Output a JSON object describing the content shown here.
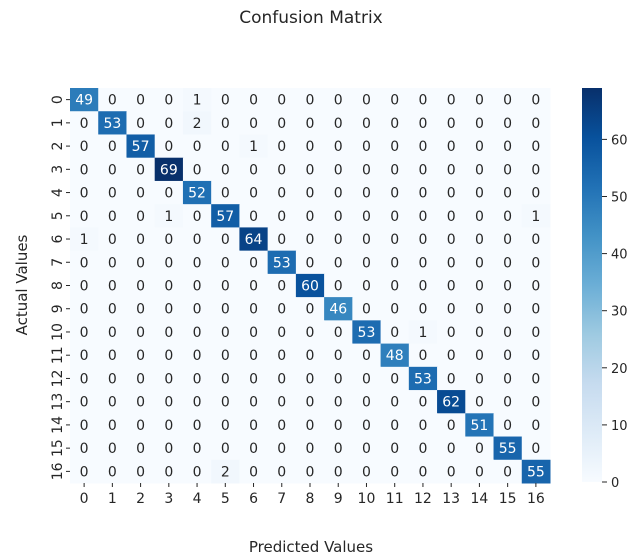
{
  "chart_data": {
    "type": "heatmap",
    "title": "Confusion Matrix",
    "xlabel": "Predicted Values",
    "ylabel": "Actual Values",
    "x_categories": [
      "0",
      "1",
      "2",
      "3",
      "4",
      "5",
      "6",
      "7",
      "8",
      "9",
      "10",
      "11",
      "12",
      "13",
      "14",
      "15",
      "16"
    ],
    "y_categories": [
      "0",
      "1",
      "2",
      "3",
      "4",
      "5",
      "6",
      "7",
      "8",
      "9",
      "10",
      "11",
      "12",
      "13",
      "14",
      "15",
      "16"
    ],
    "matrix": [
      [
        49,
        0,
        0,
        0,
        1,
        0,
        0,
        0,
        0,
        0,
        0,
        0,
        0,
        0,
        0,
        0,
        0
      ],
      [
        0,
        53,
        0,
        0,
        2,
        0,
        0,
        0,
        0,
        0,
        0,
        0,
        0,
        0,
        0,
        0,
        0
      ],
      [
        0,
        0,
        57,
        0,
        0,
        0,
        1,
        0,
        0,
        0,
        0,
        0,
        0,
        0,
        0,
        0,
        0
      ],
      [
        0,
        0,
        0,
        69,
        0,
        0,
        0,
        0,
        0,
        0,
        0,
        0,
        0,
        0,
        0,
        0,
        0
      ],
      [
        0,
        0,
        0,
        0,
        52,
        0,
        0,
        0,
        0,
        0,
        0,
        0,
        0,
        0,
        0,
        0,
        0
      ],
      [
        0,
        0,
        0,
        1,
        0,
        57,
        0,
        0,
        0,
        0,
        0,
        0,
        0,
        0,
        0,
        0,
        1
      ],
      [
        1,
        0,
        0,
        0,
        0,
        0,
        64,
        0,
        0,
        0,
        0,
        0,
        0,
        0,
        0,
        0,
        0
      ],
      [
        0,
        0,
        0,
        0,
        0,
        0,
        0,
        53,
        0,
        0,
        0,
        0,
        0,
        0,
        0,
        0,
        0
      ],
      [
        0,
        0,
        0,
        0,
        0,
        0,
        0,
        0,
        60,
        0,
        0,
        0,
        0,
        0,
        0,
        0,
        0
      ],
      [
        0,
        0,
        0,
        0,
        0,
        0,
        0,
        0,
        0,
        46,
        0,
        0,
        0,
        0,
        0,
        0,
        0
      ],
      [
        0,
        0,
        0,
        0,
        0,
        0,
        0,
        0,
        0,
        0,
        53,
        0,
        1,
        0,
        0,
        0,
        0
      ],
      [
        0,
        0,
        0,
        0,
        0,
        0,
        0,
        0,
        0,
        0,
        0,
        48,
        0,
        0,
        0,
        0,
        0
      ],
      [
        0,
        0,
        0,
        0,
        0,
        0,
        0,
        0,
        0,
        0,
        0,
        0,
        53,
        0,
        0,
        0,
        0
      ],
      [
        0,
        0,
        0,
        0,
        0,
        0,
        0,
        0,
        0,
        0,
        0,
        0,
        0,
        62,
        0,
        0,
        0
      ],
      [
        0,
        0,
        0,
        0,
        0,
        0,
        0,
        0,
        0,
        0,
        0,
        0,
        0,
        0,
        51,
        0,
        0
      ],
      [
        0,
        0,
        0,
        0,
        0,
        0,
        0,
        0,
        0,
        0,
        0,
        0,
        0,
        0,
        0,
        55,
        0
      ],
      [
        0,
        0,
        0,
        0,
        0,
        2,
        0,
        0,
        0,
        0,
        0,
        0,
        0,
        0,
        0,
        0,
        55
      ]
    ],
    "colorbar": {
      "min": 0,
      "max": 69,
      "ticks": [
        0,
        10,
        20,
        30,
        40,
        50,
        60
      ]
    },
    "colormap": "Blues",
    "colors": {
      "low": "#f7fbff",
      "high": "#08306b",
      "text_dark": "#262626",
      "text_light": "#ffffff"
    }
  }
}
